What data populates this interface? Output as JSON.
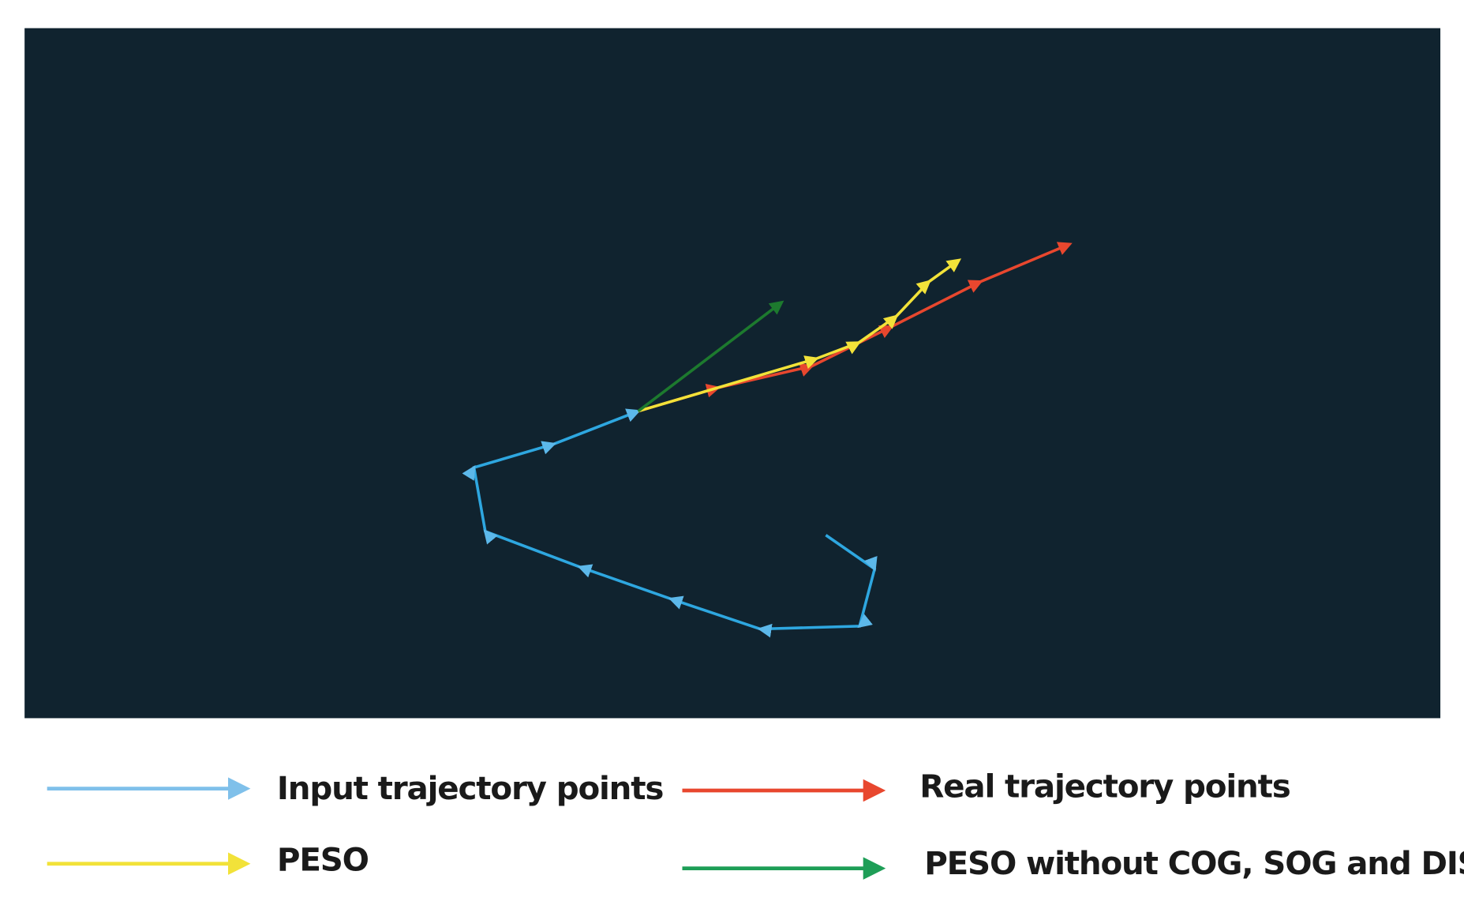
{
  "legend": [
    {
      "label": "Input trajectory points"
    },
    {
      "label": "Real trajectory points"
    },
    {
      "label": "PESO"
    },
    {
      "label": "PESO without COG, SOG and DIS"
    }
  ]
}
